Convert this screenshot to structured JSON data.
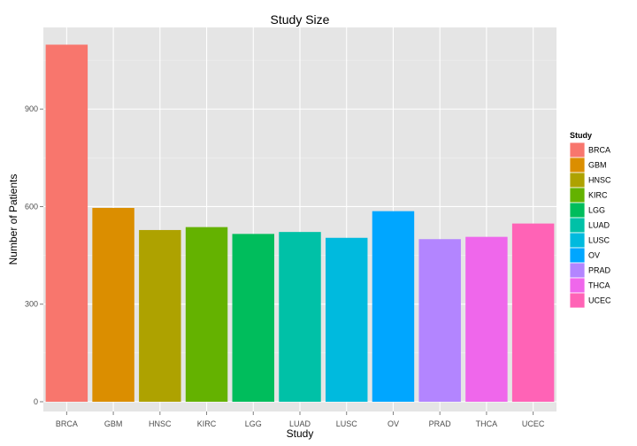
{
  "chart_data": {
    "type": "bar",
    "title": "Study Size",
    "xlabel": "Study",
    "ylabel": "Number of Patients",
    "categories": [
      "BRCA",
      "GBM",
      "HNSC",
      "KIRC",
      "LGG",
      "LUAD",
      "LUSC",
      "OV",
      "PRAD",
      "THCA",
      "UCEC"
    ],
    "values": [
      1098,
      596,
      528,
      537,
      516,
      522,
      504,
      586,
      500,
      507,
      548
    ],
    "colors": [
      "#F8766D",
      "#DB8E00",
      "#AEA200",
      "#64B200",
      "#00BD5C",
      "#00C1A7",
      "#00BADE",
      "#00A6FF",
      "#B385FF",
      "#EF67EB",
      "#FF63B6"
    ],
    "ylim": [
      -30,
      1151
    ],
    "yticks": [
      0,
      300,
      600,
      900
    ],
    "ytick_labels": [
      "0",
      "300",
      "600",
      "900"
    ],
    "grid": true,
    "legend": {
      "title": "Study",
      "placement": "right",
      "entries": [
        "BRCA",
        "GBM",
        "HNSC",
        "KIRC",
        "LGG",
        "LUAD",
        "LUSC",
        "OV",
        "PRAD",
        "THCA",
        "UCEC"
      ]
    },
    "panel_background": "#E5E5E5",
    "grid_color": "#FFFFFF"
  }
}
